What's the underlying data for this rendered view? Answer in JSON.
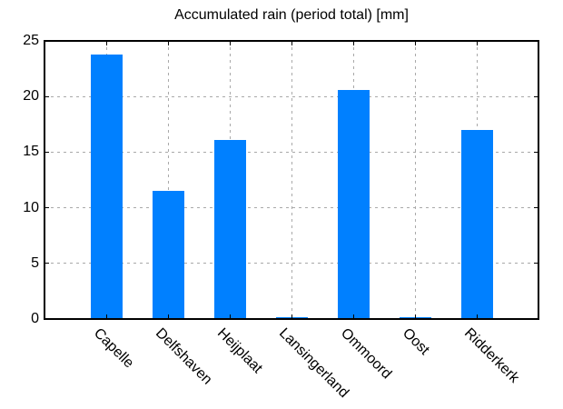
{
  "chart_data": {
    "type": "bar",
    "title": "Accumulated rain (period total) [mm]",
    "categories": [
      "Capelle",
      "Delfshaven",
      "Heijplaat",
      "Lansingerland",
      "Ommoord",
      "Oost",
      "Ridderkerk"
    ],
    "values": [
      23.8,
      11.5,
      16.1,
      0.15,
      20.6,
      0.15,
      17.0
    ],
    "yticks": [
      0,
      5,
      10,
      15,
      20,
      25
    ],
    "ylim": [
      0,
      25
    ],
    "xlabel": "",
    "ylabel": "",
    "grid": "dashed",
    "legend": "none",
    "xtick_rotation_deg": 45,
    "bar_color": "#0080ff",
    "grid_color": "#a9a9a9",
    "axis_color": "#000000",
    "background_color": "#ffffff"
  }
}
